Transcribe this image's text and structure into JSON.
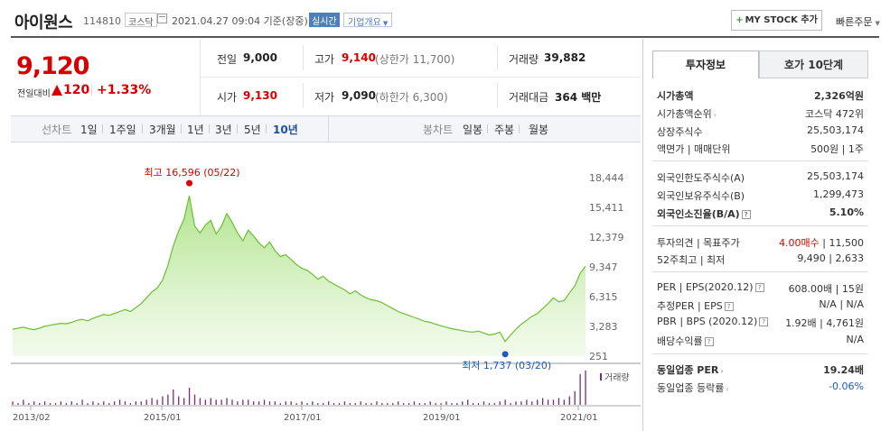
{
  "header": {
    "name": "아이원스",
    "code": "114810",
    "market": "코스닥",
    "datetime": "2021.04.27 09:04 기준(장중)",
    "realtime_badge": "실시간",
    "overview_label": "기업개요",
    "mystock_label": "MY STOCK 추가",
    "quick_order": "빠른주문"
  },
  "price": {
    "current": "9,120",
    "vs_label": "전일대비",
    "change": "120",
    "change_pct": "+1.33%",
    "up_color": "#d60000"
  },
  "summary": {
    "prev_close_label": "전일",
    "prev_close": "9,000",
    "high_label": "고가",
    "high": "9,140",
    "upper_limit": "(상한가 11,700)",
    "volume_label": "거래량",
    "volume": "39,882",
    "open_label": "시가",
    "open": "9,130",
    "low_label": "저가",
    "low": "9,090",
    "lower_limit": "(하한가 6,300)",
    "amount_label": "거래대금",
    "amount": "364 백만"
  },
  "tabs": {
    "line_chart_label": "선차트",
    "periods": [
      "1일",
      "1주일",
      "3개월",
      "1년",
      "3년",
      "5년",
      "10년"
    ],
    "active_period": "10년",
    "candle_chart_label": "봉차트",
    "candles": [
      "일봉",
      "주봉",
      "월봉"
    ]
  },
  "chart_data": {
    "type": "area",
    "y_ticks": [
      "18,444",
      "15,411",
      "12,379",
      "9,347",
      "6,315",
      "3,283",
      "251"
    ],
    "x_ticks": [
      "2013/02",
      "2015/01",
      "2017/01",
      "2019/01",
      "2021/01"
    ],
    "max_annotation": "최고 16,596 (05/22)",
    "min_annotation": "최저 1,737 (03/20)",
    "volume_legend": "거래량",
    "ylim": [
      251,
      18444
    ],
    "series": [
      {
        "values": [
          3000,
          3100,
          3200,
          3050,
          2950,
          3100,
          3300,
          3400,
          3500,
          3600,
          3550,
          3700,
          3900,
          4000,
          3850,
          4100,
          4300,
          4500,
          4400,
          4600,
          4800,
          5000,
          4800,
          5200,
          5600,
          6200,
          6800,
          7200,
          8000,
          9500,
          11500,
          13000,
          14200,
          16596,
          13500,
          12800,
          13600,
          14100,
          12700,
          13500,
          14800,
          13900,
          12800,
          12000,
          13100,
          12500,
          11800,
          11300,
          11900,
          11000,
          10400,
          10600,
          10100,
          9600,
          9200,
          9000,
          8600,
          8100,
          8400,
          7900,
          7600,
          7300,
          7000,
          6600,
          6900,
          6500,
          6200,
          6000,
          5900,
          5700,
          5400,
          5100,
          4800,
          4600,
          4400,
          4200,
          4000,
          3800,
          3700,
          3500,
          3350,
          3200,
          3050,
          2950,
          2850,
          2750,
          2700,
          2800,
          2600,
          2400,
          2500,
          2700,
          1737,
          2400,
          3000,
          3500,
          3900,
          4300,
          4600,
          5100,
          5600,
          6200,
          5800,
          5900,
          6700,
          7400,
          8700,
          9400
        ]
      }
    ],
    "volume": [
      2,
      1,
      3,
      1,
      2,
      1,
      2,
      1,
      1,
      2,
      1,
      2,
      1,
      3,
      1,
      2,
      1,
      2,
      1,
      2,
      3,
      2,
      1,
      2,
      2,
      3,
      4,
      3,
      5,
      6,
      9,
      5,
      4,
      10,
      6,
      4,
      3,
      4,
      3,
      3,
      4,
      3,
      2,
      3,
      3,
      2,
      2,
      3,
      2,
      2,
      1,
      2,
      2,
      1,
      2,
      1,
      2,
      1,
      1,
      2,
      1,
      1,
      2,
      1,
      1,
      2,
      1,
      1,
      2,
      1,
      1,
      1,
      2,
      1,
      1,
      2,
      1,
      1,
      2,
      1,
      1,
      2,
      1,
      1,
      2,
      3,
      1,
      1,
      2,
      1,
      1,
      2,
      3,
      1,
      2,
      2,
      3,
      2,
      3,
      4,
      3,
      3,
      4,
      3,
      5,
      8,
      18,
      20
    ]
  },
  "info": {
    "tab_invest": "투자정보",
    "tab_quote": "호가 10단계",
    "market_cap_label": "시가총액",
    "market_cap": "2,326억원",
    "market_cap_rank_label": "시가총액순위",
    "market_cap_rank": "코스닥 472위",
    "shares_label": "상장주식수",
    "shares": "25,503,174",
    "par_label": "액면가 | 매매단위",
    "par": "500원 | 1주",
    "foreign_limit_label": "외국인한도주식수(A)",
    "foreign_limit": "25,503,174",
    "foreign_hold_label": "외국인보유주식수(B)",
    "foreign_hold": "1,299,473",
    "foreign_ratio_label": "외국인소진율(B/A)",
    "foreign_ratio": "5.10%",
    "opinion_label": "투자의견 | 목표주가",
    "opinion": "4.00매수",
    "target": "11,500",
    "range52_label": "52주최고 | 최저",
    "range52": "9,490 | 2,633",
    "per_label": "PER | EPS(2020.12)",
    "per": "608.00배 | 15원",
    "est_per_label": "추정PER | EPS",
    "est_per": "N/A | N/A",
    "pbr_label": "PBR | BPS (2020.12)",
    "pbr": "1.92배 | 4,761원",
    "dividend_label": "배당수익률",
    "dividend": "N/A",
    "sector_per_label": "동일업종 PER",
    "sector_per": "19.24배",
    "sector_chg_label": "동일업종 등락률",
    "sector_chg": "-0.06%"
  }
}
